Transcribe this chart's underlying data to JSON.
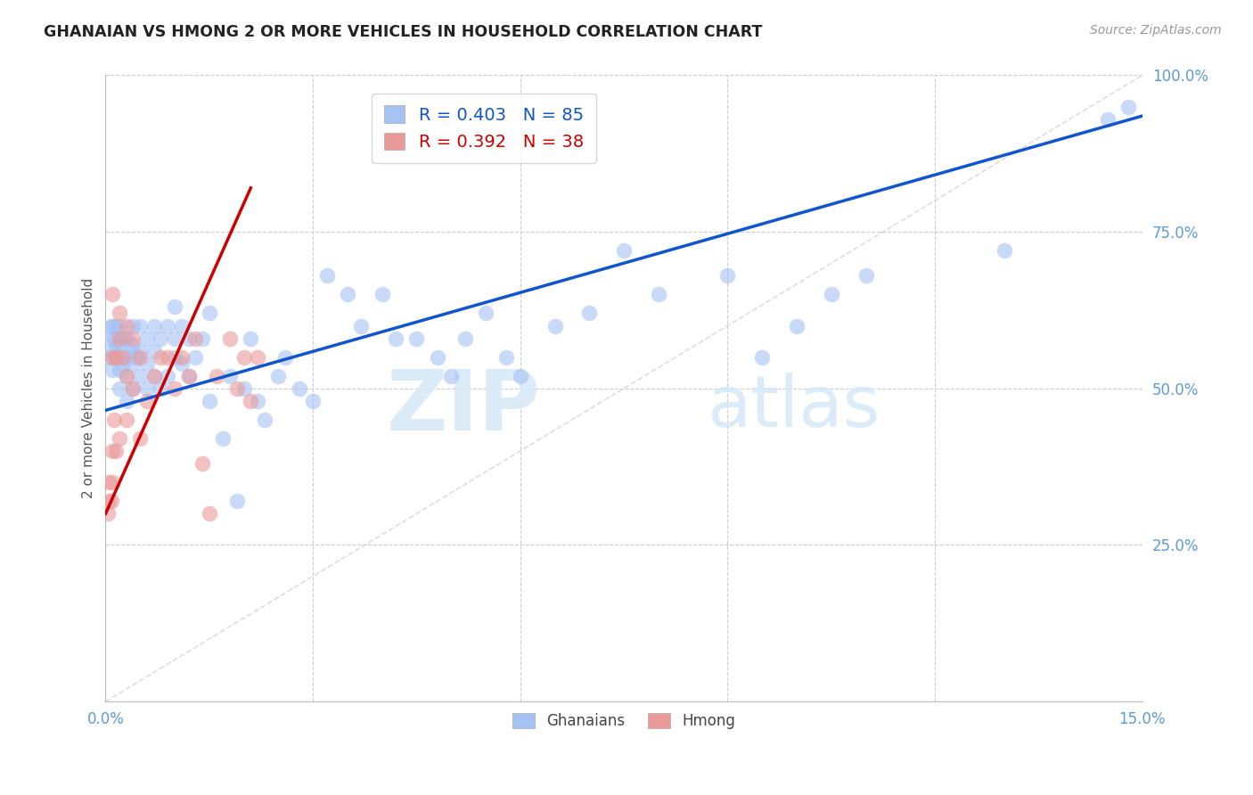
{
  "title": "GHANAIAN VS HMONG 2 OR MORE VEHICLES IN HOUSEHOLD CORRELATION CHART",
  "source": "Source: ZipAtlas.com",
  "ylabel": "2 or more Vehicles in Household",
  "xlim": [
    0.0,
    0.15
  ],
  "ylim": [
    0.0,
    1.0
  ],
  "xticks": [
    0.0,
    0.03,
    0.06,
    0.09,
    0.12,
    0.15
  ],
  "xticklabels": [
    "0.0%",
    "",
    "",
    "",
    "",
    "15.0%"
  ],
  "yticks": [
    0.0,
    0.25,
    0.5,
    0.75,
    1.0
  ],
  "yticklabels": [
    "",
    "25.0%",
    "50.0%",
    "75.0%",
    "100.0%"
  ],
  "legend_r1": "R = 0.403",
  "legend_n1": "N = 85",
  "legend_r2": "R = 0.392",
  "legend_n2": "N = 38",
  "ghanaian_color": "#a4c2f4",
  "hmong_color": "#ea9999",
  "line_color_ghanaian": "#1155cc",
  "line_color_hmong": "#cc0000",
  "diagonal_color": "#dddddd",
  "watermark_zip": "ZIP",
  "watermark_atlas": "atlas",
  "ghanaians_x": [
    0.0005,
    0.0005,
    0.0008,
    0.001,
    0.001,
    0.001,
    0.0012,
    0.0013,
    0.0015,
    0.0015,
    0.002,
    0.002,
    0.002,
    0.002,
    0.0025,
    0.0025,
    0.003,
    0.003,
    0.003,
    0.003,
    0.0035,
    0.004,
    0.004,
    0.004,
    0.004,
    0.0045,
    0.005,
    0.005,
    0.005,
    0.006,
    0.006,
    0.006,
    0.007,
    0.007,
    0.007,
    0.008,
    0.008,
    0.009,
    0.009,
    0.01,
    0.01,
    0.01,
    0.011,
    0.011,
    0.012,
    0.012,
    0.013,
    0.014,
    0.015,
    0.015,
    0.017,
    0.018,
    0.019,
    0.02,
    0.021,
    0.022,
    0.023,
    0.025,
    0.026,
    0.028,
    0.03,
    0.032,
    0.035,
    0.037,
    0.04,
    0.042,
    0.045,
    0.048,
    0.05,
    0.052,
    0.055,
    0.058,
    0.06,
    0.065,
    0.07,
    0.075,
    0.08,
    0.09,
    0.095,
    0.1,
    0.105,
    0.11,
    0.13,
    0.145,
    0.148
  ],
  "ghanaians_y": [
    0.55,
    0.58,
    0.6,
    0.53,
    0.56,
    0.6,
    0.58,
    0.55,
    0.57,
    0.6,
    0.5,
    0.53,
    0.57,
    0.6,
    0.54,
    0.58,
    0.48,
    0.52,
    0.55,
    0.58,
    0.56,
    0.5,
    0.54,
    0.57,
    0.6,
    0.55,
    0.52,
    0.56,
    0.6,
    0.5,
    0.54,
    0.58,
    0.52,
    0.56,
    0.6,
    0.5,
    0.58,
    0.52,
    0.6,
    0.55,
    0.58,
    0.63,
    0.54,
    0.6,
    0.52,
    0.58,
    0.55,
    0.58,
    0.48,
    0.62,
    0.42,
    0.52,
    0.32,
    0.5,
    0.58,
    0.48,
    0.45,
    0.52,
    0.55,
    0.5,
    0.48,
    0.68,
    0.65,
    0.6,
    0.65,
    0.58,
    0.58,
    0.55,
    0.52,
    0.58,
    0.62,
    0.55,
    0.52,
    0.6,
    0.62,
    0.72,
    0.65,
    0.68,
    0.55,
    0.6,
    0.65,
    0.68,
    0.72,
    0.93,
    0.95
  ],
  "hmong_x": [
    0.0003,
    0.0005,
    0.0005,
    0.0008,
    0.001,
    0.001,
    0.001,
    0.001,
    0.0012,
    0.0015,
    0.0015,
    0.002,
    0.002,
    0.002,
    0.0025,
    0.003,
    0.003,
    0.003,
    0.004,
    0.004,
    0.005,
    0.005,
    0.006,
    0.007,
    0.008,
    0.009,
    0.01,
    0.011,
    0.012,
    0.013,
    0.014,
    0.015,
    0.016,
    0.018,
    0.019,
    0.02,
    0.021,
    0.022
  ],
  "hmong_y": [
    0.3,
    0.32,
    0.35,
    0.32,
    0.35,
    0.4,
    0.55,
    0.65,
    0.45,
    0.4,
    0.55,
    0.42,
    0.58,
    0.62,
    0.55,
    0.45,
    0.52,
    0.6,
    0.5,
    0.58,
    0.42,
    0.55,
    0.48,
    0.52,
    0.55,
    0.55,
    0.5,
    0.55,
    0.52,
    0.58,
    0.38,
    0.3,
    0.52,
    0.58,
    0.5,
    0.55,
    0.48,
    0.55
  ],
  "gh_line_x": [
    0.0,
    0.15
  ],
  "gh_line_y": [
    0.465,
    0.935
  ],
  "hm_line_x": [
    0.0,
    0.021
  ],
  "hm_line_y": [
    0.3,
    0.82
  ],
  "diag_line_x": [
    0.0,
    0.15
  ],
  "diag_line_y": [
    0.0,
    1.0
  ]
}
